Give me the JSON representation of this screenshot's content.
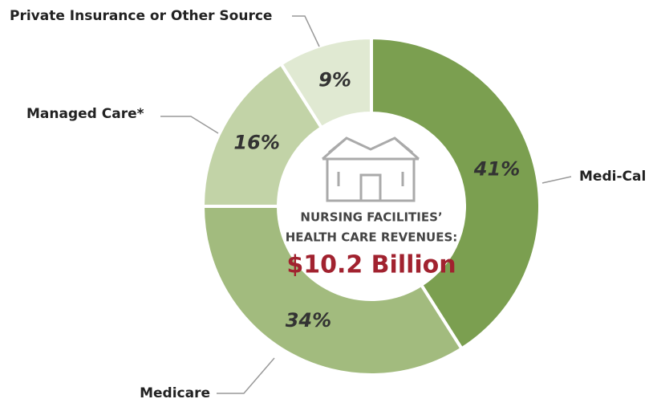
{
  "chart_data": {
    "type": "donut",
    "categories": [
      "Medi-Cal",
      "Medicare",
      "Managed Care*",
      "Private Insurance or Other Source"
    ],
    "values": [
      41,
      34,
      16,
      9
    ],
    "value_labels": [
      "41%",
      "34%",
      "16%",
      "9%"
    ],
    "colors": [
      "#7b9f50",
      "#a2bb7e",
      "#c2d3a7",
      "#e0e9d2"
    ],
    "center_label": [
      "NURSING FACILITIES’",
      "HEALTH CARE REVENUES:"
    ],
    "total_label": "$10.2 Billion"
  }
}
